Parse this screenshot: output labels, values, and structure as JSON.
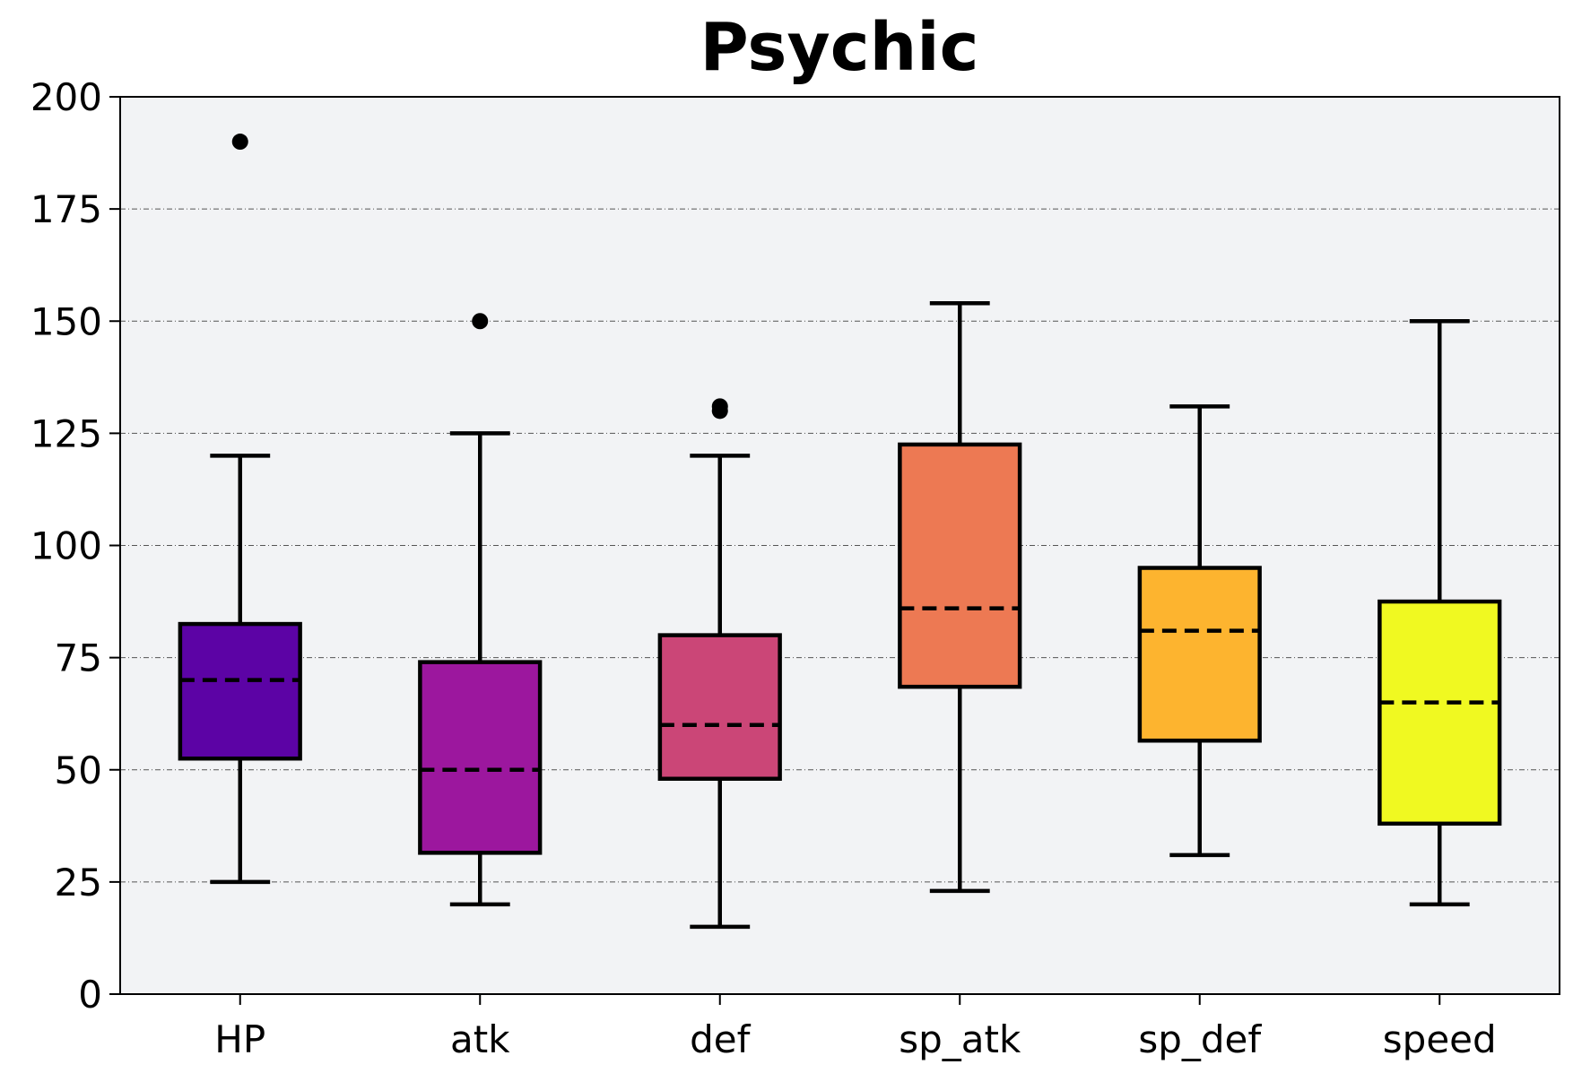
{
  "chart_data": {
    "type": "box",
    "title": "Psychic",
    "xlabel": "",
    "ylabel": "",
    "ylim": [
      0,
      200
    ],
    "yticks": [
      0,
      25,
      50,
      75,
      100,
      125,
      150,
      175,
      200
    ],
    "grid": "horizontal dashed",
    "legend": "none",
    "categories": [
      "HP",
      "atk",
      "def",
      "sp_atk",
      "sp_def",
      "speed"
    ],
    "boxes": [
      {
        "label": "HP",
        "whisker_low": 25,
        "q1": 52.5,
        "median": 70,
        "q3": 82.5,
        "whisker_high": 120,
        "outliers": [
          190
        ],
        "color": "#5c03a5"
      },
      {
        "label": "atk",
        "whisker_low": 20,
        "q1": 31.5,
        "median": 50,
        "q3": 74,
        "whisker_high": 125,
        "outliers": [
          150
        ],
        "color": "#9c179e"
      },
      {
        "label": "def",
        "whisker_low": 15,
        "q1": 48,
        "median": 60,
        "q3": 80,
        "whisker_high": 120,
        "outliers": [
          130,
          131
        ],
        "color": "#cb4677"
      },
      {
        "label": "sp_atk",
        "whisker_low": 23,
        "q1": 68.5,
        "median": 86,
        "q3": 122.5,
        "whisker_high": 154,
        "outliers": [],
        "color": "#ed7953"
      },
      {
        "label": "sp_def",
        "whisker_low": 31,
        "q1": 56.5,
        "median": 81,
        "q3": 95,
        "whisker_high": 131,
        "outliers": [],
        "color": "#fdb42f"
      },
      {
        "label": "speed",
        "whisker_low": 20,
        "q1": 38,
        "median": 65,
        "q3": 87.5,
        "whisker_high": 150,
        "outliers": [],
        "color": "#f0f921"
      }
    ],
    "plot_background": "#f2f3f5"
  }
}
